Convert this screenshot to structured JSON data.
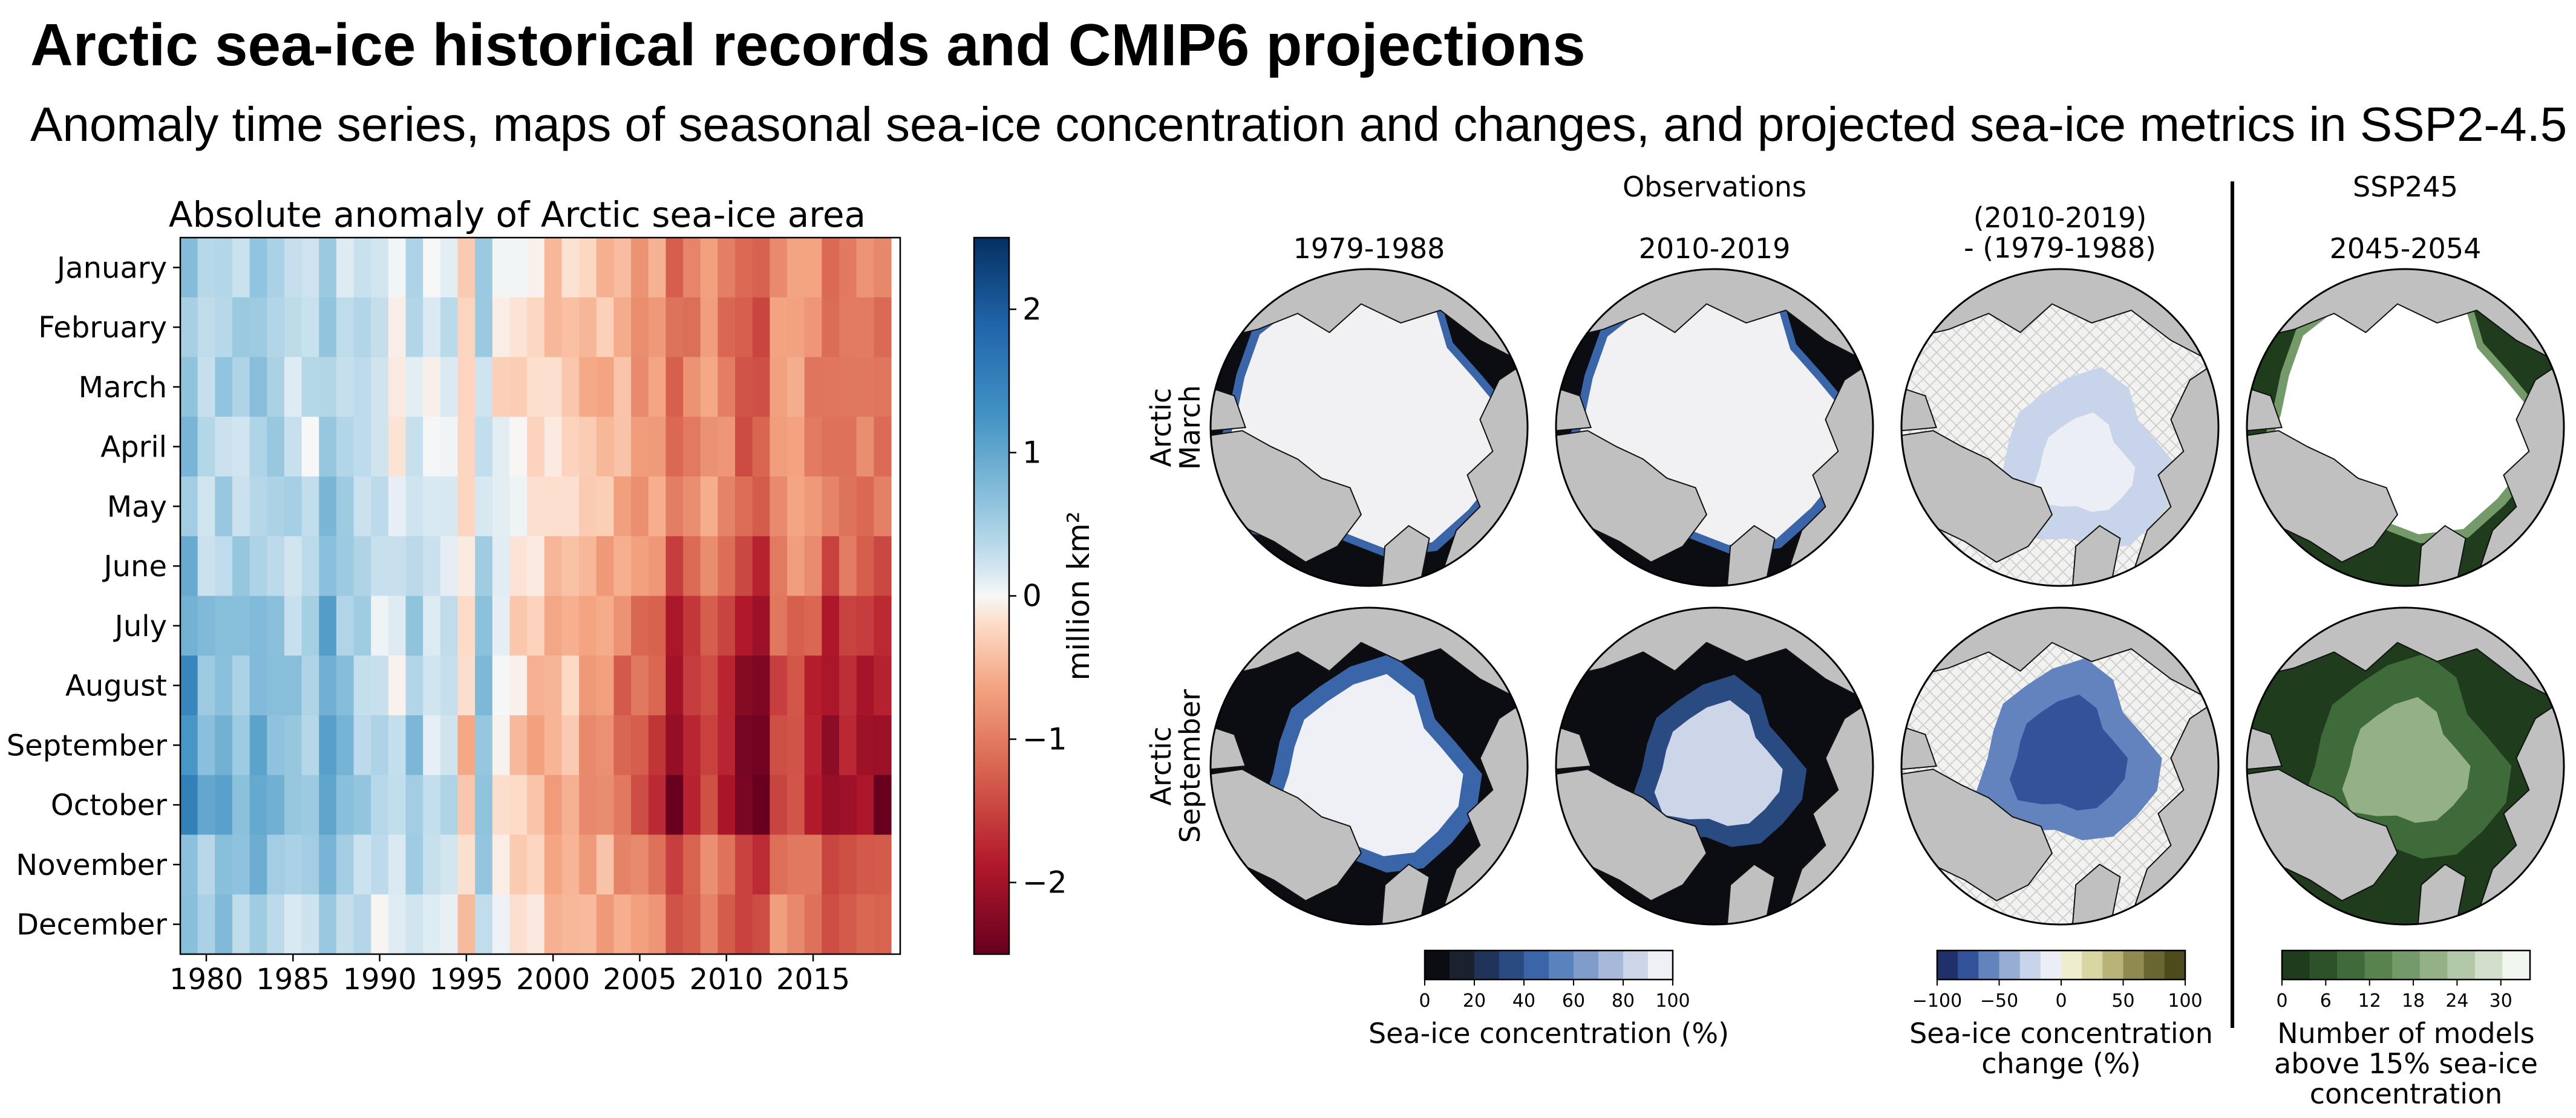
{
  "header": {
    "title": "Arctic sea-ice historical records and CMIP6 projections",
    "subtitle": "Anomaly time series, maps of seasonal sea-ice concentration and changes, and projected sea-ice metrics in SSP2-4.5"
  },
  "colors": {
    "anomaly_negative": "#67001f",
    "anomaly_positive": "#053061",
    "ice": "#f1f1f3",
    "land": "#c0c0c0",
    "ocean_open": "#0b0d12",
    "models_dark": "#1f3d1c",
    "change_negative": "#20306a",
    "change_positive": "#4d4a1c"
  },
  "chart_data": [
    {
      "type": "heatmap",
      "title": "Absolute anomaly of Arctic sea-ice area",
      "rows": [
        "January",
        "February",
        "March",
        "April",
        "May",
        "June",
        "July",
        "August",
        "September",
        "October",
        "November",
        "December"
      ],
      "x_ticks": [
        "1980",
        "1985",
        "1990",
        "1995",
        "2000",
        "2005",
        "2010",
        "2015"
      ],
      "x_range": [
        1979,
        2019
      ],
      "colorbar": {
        "label": "million km²",
        "range": [
          -2.5,
          2.5
        ],
        "ticks": [
          "2",
          "1",
          "0",
          "−1",
          "−2"
        ],
        "colormap": "RdBu"
      },
      "annual_mean_anomaly": [
        0.9,
        0.5,
        0.6,
        0.5,
        0.7,
        0.5,
        0.4,
        0.3,
        0.8,
        0.5,
        0.3,
        0.2,
        0.1,
        0.4,
        0.1,
        0.2,
        -0.3,
        0.5,
        -0.1,
        -0.2,
        -0.3,
        -0.4,
        -0.3,
        -0.6,
        -0.6,
        -0.8,
        -0.9,
        -1.0,
        -1.6,
        -1.2,
        -1.0,
        -1.3,
        -1.6,
        -1.8,
        -1.0,
        -1.0,
        -1.2,
        -1.5,
        -1.3,
        -1.3,
        -1.5
      ],
      "month_scale": [
        0.7,
        0.75,
        0.75,
        0.75,
        0.75,
        0.9,
        1.15,
        1.35,
        1.45,
        1.55,
        1.0,
        0.9
      ]
    },
    {
      "type": "map",
      "observations_header": "Observations",
      "projection_header": "SSP245",
      "columns": [
        "1979-1988",
        "2010-2019",
        "(2010-2019)\n- (1979-1988)",
        "2045-2054"
      ],
      "rows": [
        "Arctic\nMarch",
        "Arctic\nSeptember"
      ],
      "colorbars": [
        {
          "label": "Sea-ice concentration (%)",
          "ticks": [
            "0",
            "20",
            "40",
            "60",
            "80",
            "100"
          ],
          "range": [
            0,
            100
          ],
          "colors": [
            "#0b0d12",
            "#1a2230",
            "#1f3458",
            "#2a4a82",
            "#3a65a8",
            "#5a82bd",
            "#7f9ccb",
            "#a6b9da",
            "#ccd6e8",
            "#eef0f5"
          ]
        },
        {
          "label": "Sea-ice concentration\nchange (%)",
          "ticks": [
            "−100",
            "−50",
            "0",
            "50",
            "100"
          ],
          "range": [
            -100,
            100
          ],
          "colors": [
            "#20306a",
            "#34529a",
            "#6283be",
            "#97add4",
            "#c7d4ea",
            "#eceef6",
            "#eeeecf",
            "#d8d6a3",
            "#b8b478",
            "#8f8a4f",
            "#6a6632",
            "#4d4a1c"
          ]
        },
        {
          "label": "Number of models\nabove 15% sea-ice\nconcentration",
          "ticks": [
            "0",
            "6",
            "12",
            "18",
            "24",
            "30"
          ],
          "range": [
            0,
            34
          ],
          "colors": [
            "#1f3d1c",
            "#2d5229",
            "#3f6b3a",
            "#58834f",
            "#759a6a",
            "#93b087",
            "#b2c8a8",
            "#d2dfcb",
            "#f2f6f0"
          ]
        }
      ]
    }
  ]
}
